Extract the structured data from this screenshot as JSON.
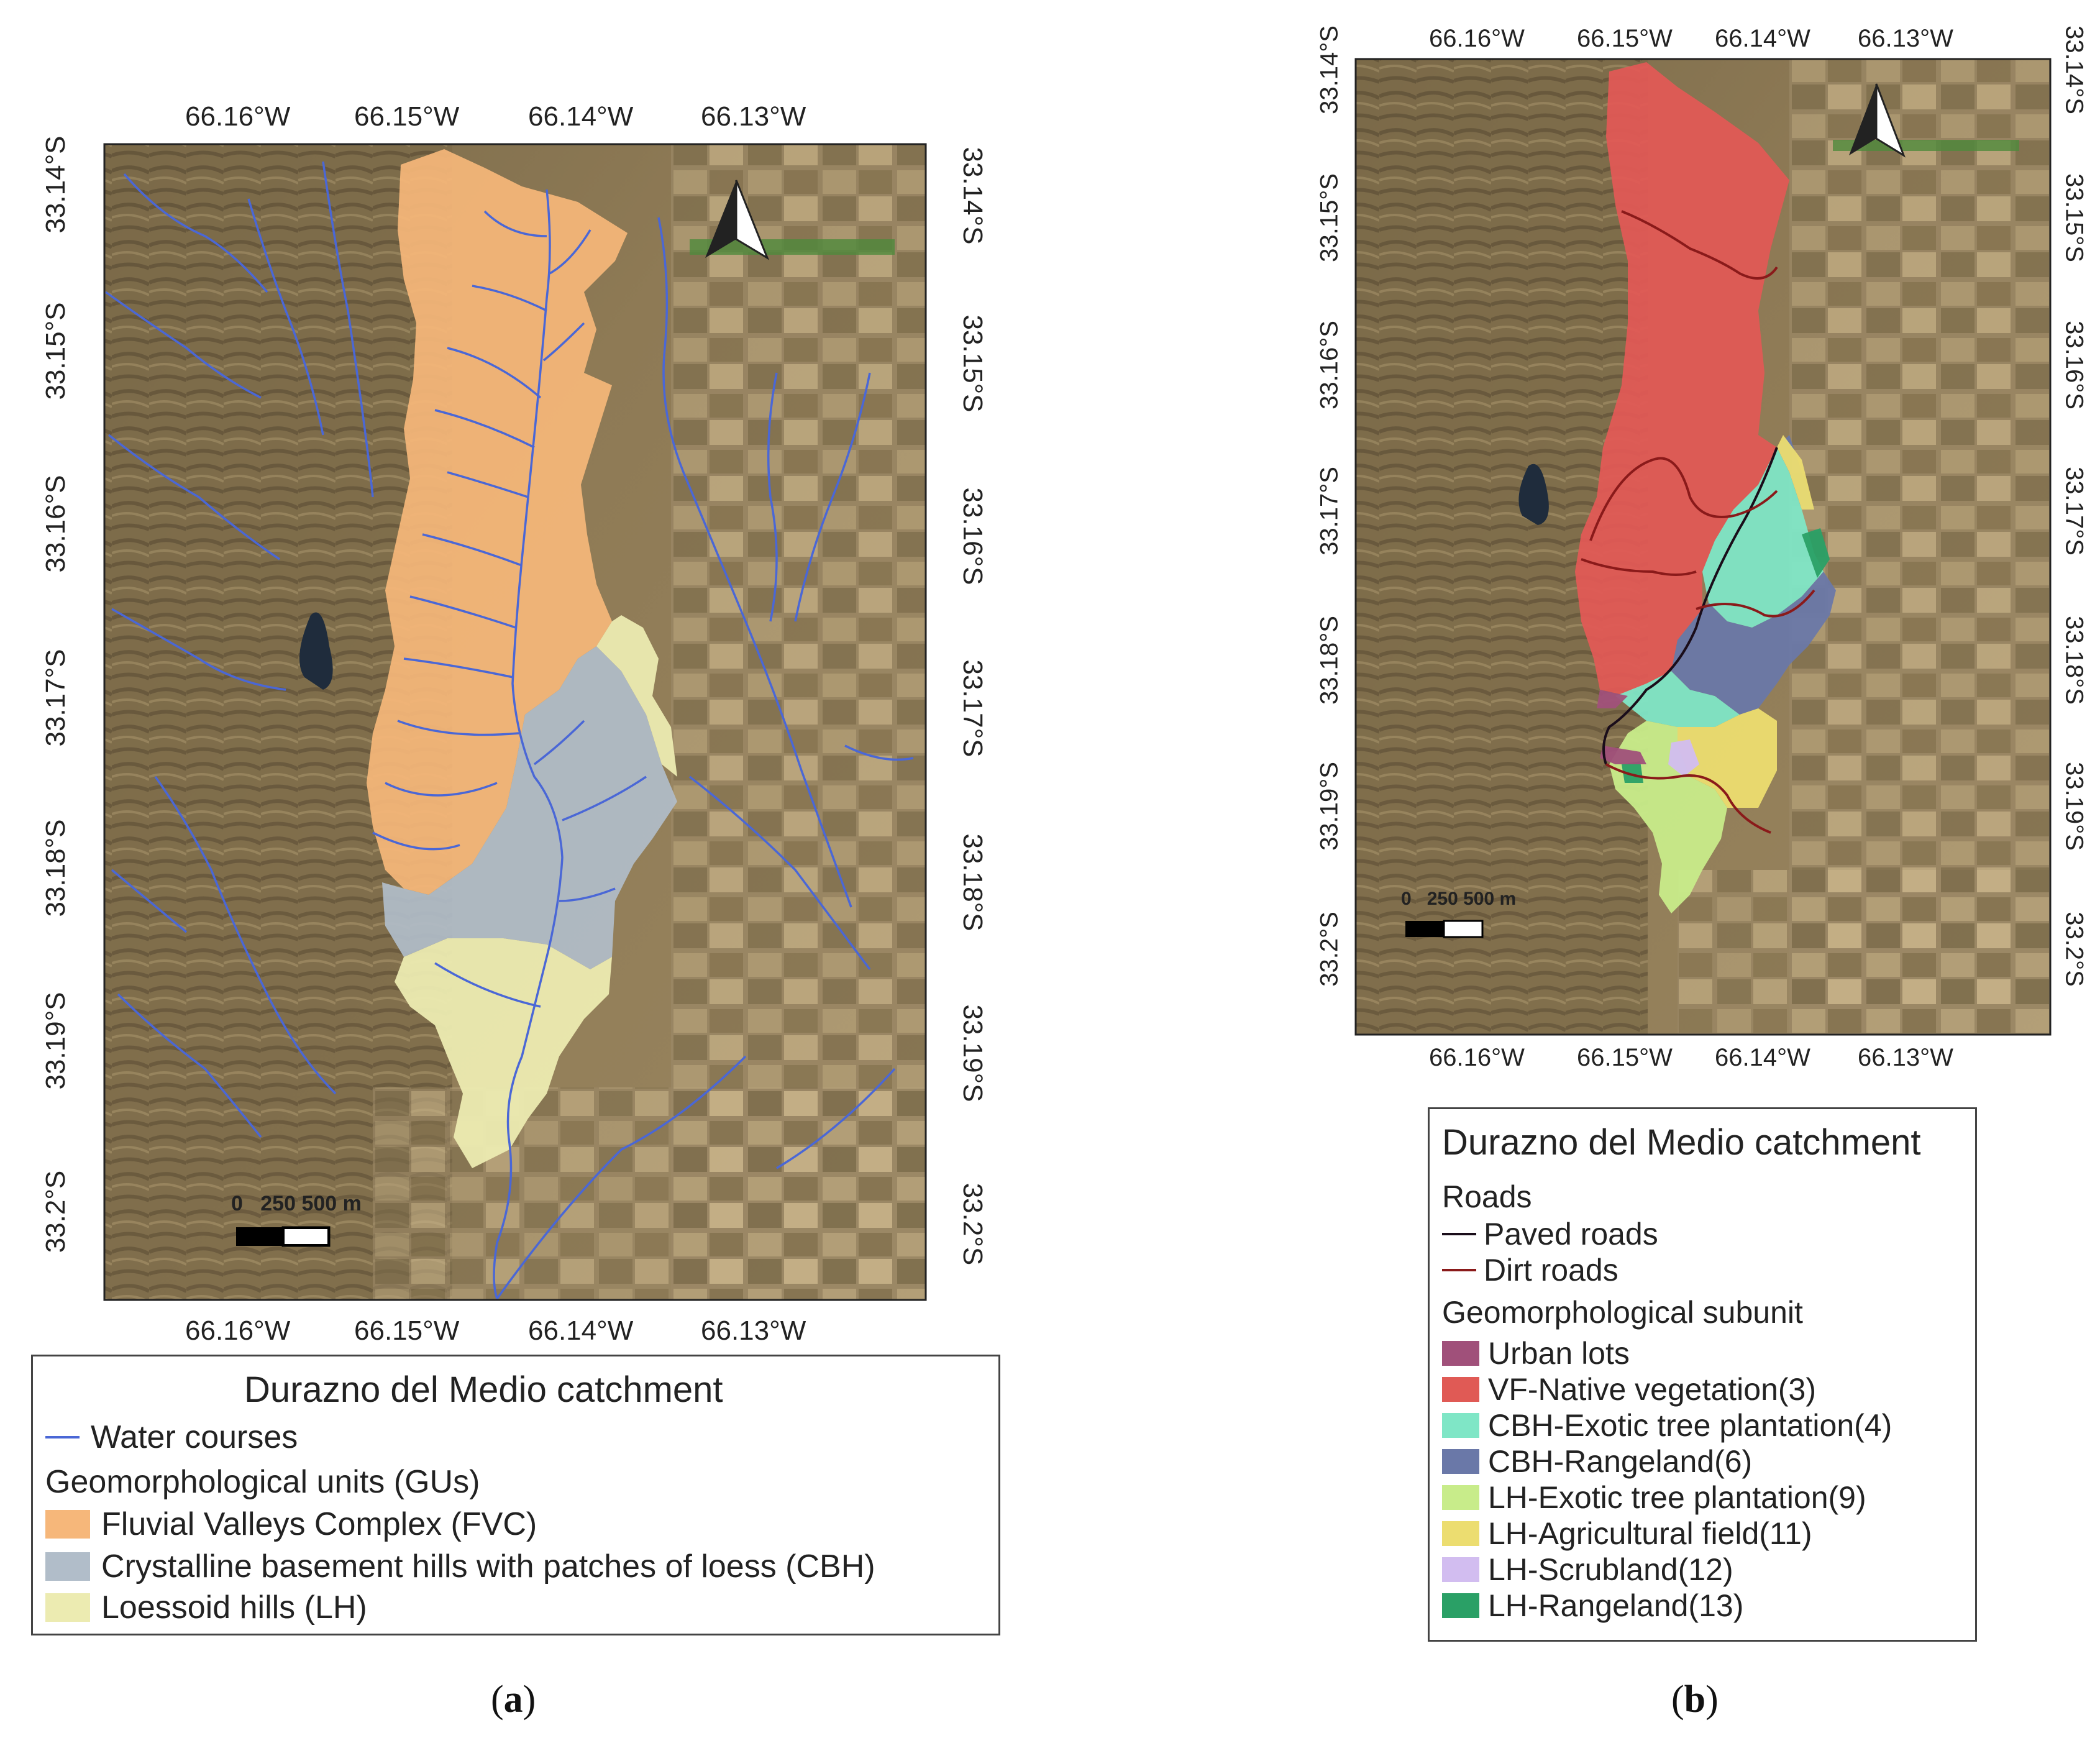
{
  "colors": {
    "fvc": "#f6b77a",
    "cbh": "#b1bdc9",
    "lh": "#ecebb1",
    "water": "#4a67d6",
    "paved": "#1a0d1a",
    "dirt": "#8a1a1a",
    "urban": "#a0507a",
    "vf_native": "#e05a55",
    "cbh_exotic": "#7fe6c6",
    "cbh_range": "#6a78a8",
    "lh_exotic": "#c8ec8a",
    "lh_agri": "#ecdd70",
    "lh_scrub": "#d2bdf0",
    "lh_range": "#2aa066",
    "satellite_base": "#8f7a55"
  },
  "panel_a": {
    "caption_open": "(",
    "caption_letter": "a",
    "caption_close": ")",
    "lon_ticks": [
      "66.16°W",
      "66.15°W",
      "66.14°W",
      "66.13°W"
    ],
    "lat_ticks": [
      "33.14°S",
      "33.15°S",
      "33.16°S",
      "33.17°S",
      "33.18°S",
      "33.19°S",
      "33.2°S"
    ],
    "scale_labels": [
      "0",
      "250",
      "500 m"
    ],
    "north_arrow_icon": "north-arrow-icon",
    "legend": {
      "title": "Durazno del Medio catchment",
      "line_item": "Water courses",
      "subtitle": "Geomorphological units (GUs)",
      "items": [
        {
          "label": "Fluvial Valleys Complex (FVC)",
          "color": "#f6b77a"
        },
        {
          "label": "Crystalline basement hills with patches of loess (CBH)",
          "color": "#b1bdc9"
        },
        {
          "label": "Loessoid hills (LH)",
          "color": "#ecebb1"
        }
      ]
    }
  },
  "panel_b": {
    "caption_open": "(",
    "caption_letter": "b",
    "caption_close": ")",
    "lon_ticks": [
      "66.16°W",
      "66.15°W",
      "66.14°W",
      "66.13°W"
    ],
    "lat_ticks": [
      "33.14°S",
      "33.15°S",
      "33.16°S",
      "33.17°S",
      "33.18°S",
      "33.19°S",
      "33.2°S"
    ],
    "scale_labels": [
      "0",
      "250",
      "500 m"
    ],
    "north_arrow_icon": "north-arrow-icon",
    "legend": {
      "title": "Durazno del Medio catchment",
      "roads_heading": "Roads",
      "roads": [
        {
          "label": "Paved roads",
          "color": "#1a0d1a"
        },
        {
          "label": "Dirt roads",
          "color": "#8a1a1a"
        }
      ],
      "subtitle": "Geomorphological subunit",
      "items": [
        {
          "label": "Urban lots",
          "color": "#a0507a"
        },
        {
          "label": "VF-Native vegetation(3)",
          "color": "#e05a55"
        },
        {
          "label": "CBH-Exotic tree plantation(4)",
          "color": "#7fe6c6"
        },
        {
          "label": "CBH-Rangeland(6)",
          "color": "#6a78a8"
        },
        {
          "label": "LH-Exotic tree plantation(9)",
          "color": "#c8ec8a"
        },
        {
          "label": "LH-Agricultural field(11)",
          "color": "#ecdd70"
        },
        {
          "label": "LH-Scrubland(12)",
          "color": "#d2bdf0"
        },
        {
          "label": "LH-Rangeland(13)",
          "color": "#2aa066"
        }
      ]
    }
  }
}
